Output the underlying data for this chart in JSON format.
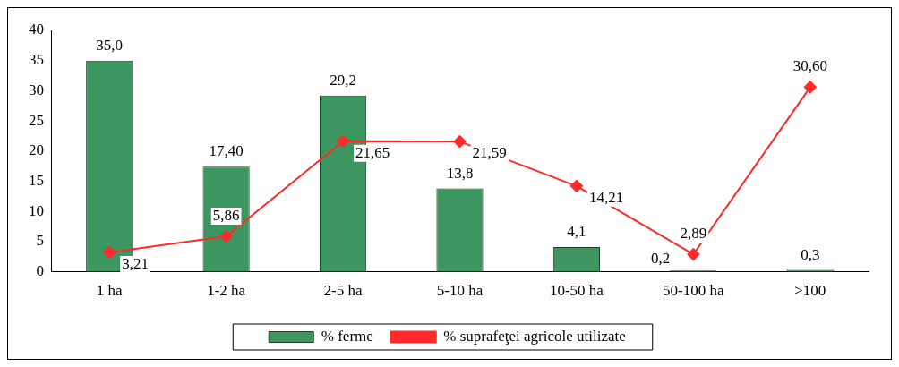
{
  "chart_data": {
    "type": "bar",
    "categories": [
      "1 ha",
      "1-2 ha",
      "2-5 ha",
      "5-10 ha",
      "10-50 ha",
      "50-100 ha",
      ">100"
    ],
    "series": [
      {
        "name": "% ferme",
        "color": "#3d9660",
        "values": [
          35.0,
          17.4,
          29.2,
          13.8,
          4.1,
          0.2,
          0.3
        ],
        "value_labels": [
          "35,0",
          "17,40",
          "29,2",
          "13,8",
          "4,1",
          "0,2",
          "0,3"
        ]
      },
      {
        "name": "% suprafeţei agricole utilizate",
        "type": "line",
        "color": "#ff2a2a",
        "marker": "diamond",
        "values": [
          3.21,
          5.86,
          21.65,
          21.59,
          14.21,
          2.89,
          30.6
        ],
        "value_labels": [
          "3,21",
          "5,86",
          "21,65",
          "21,59",
          "14,21",
          "2,89",
          "30,60"
        ]
      }
    ],
    "ylim": [
      0,
      40
    ],
    "yticks": [
      0,
      5,
      10,
      15,
      20,
      25,
      30,
      35,
      40
    ],
    "grid": false,
    "legend": "bottom"
  }
}
